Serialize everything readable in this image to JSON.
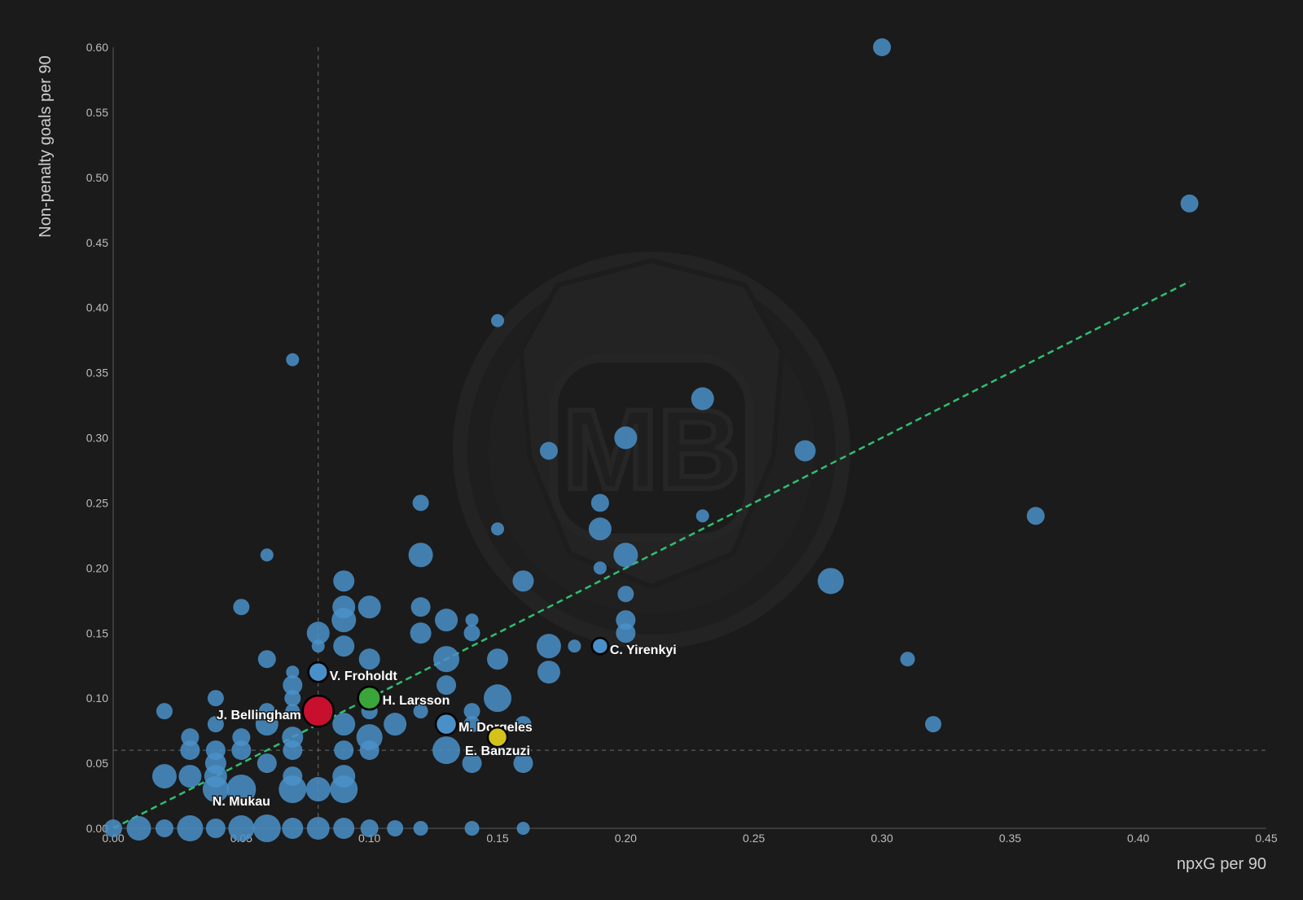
{
  "chart_data": {
    "type": "scatter",
    "title": "",
    "xlabel": "npxG per 90",
    "ylabel": "Non-penalty goals per 90",
    "xlim": [
      0,
      0.45
    ],
    "ylim": [
      0,
      0.6
    ],
    "x_ticks": [
      "0.00",
      "0.05",
      "0.10",
      "0.15",
      "0.20",
      "0.25",
      "0.30",
      "0.35",
      "0.40",
      "0.45"
    ],
    "y_ticks": [
      "0.00",
      "0.05",
      "0.10",
      "0.15",
      "0.20",
      "0.25",
      "0.30",
      "0.35",
      "0.40",
      "0.45",
      "0.50",
      "0.55",
      "0.60"
    ],
    "reference_lines": {
      "x_mean": 0.08,
      "y_mean": 0.06
    },
    "trend_line": {
      "from": [
        0,
        0
      ],
      "to": [
        0.42,
        0.42
      ],
      "color": "#2fbf71"
    },
    "grid": false,
    "watermark": "MB",
    "colors": {
      "default": "#4a90c8",
      "highlight_red": "#c8102e",
      "highlight_green": "#3aa53a",
      "highlight_yellow": "#d4c21a"
    },
    "points": [
      {
        "x": 0.3,
        "y": 0.6,
        "r": 11
      },
      {
        "x": 0.42,
        "y": 0.48,
        "r": 11
      },
      {
        "x": 0.15,
        "y": 0.39,
        "r": 8
      },
      {
        "x": 0.07,
        "y": 0.36,
        "r": 8
      },
      {
        "x": 0.23,
        "y": 0.33,
        "r": 14
      },
      {
        "x": 0.2,
        "y": 0.3,
        "r": 14
      },
      {
        "x": 0.17,
        "y": 0.29,
        "r": 11
      },
      {
        "x": 0.27,
        "y": 0.29,
        "r": 13
      },
      {
        "x": 0.12,
        "y": 0.25,
        "r": 10
      },
      {
        "x": 0.19,
        "y": 0.25,
        "r": 11
      },
      {
        "x": 0.36,
        "y": 0.24,
        "r": 11
      },
      {
        "x": 0.23,
        "y": 0.24,
        "r": 8
      },
      {
        "x": 0.15,
        "y": 0.23,
        "r": 8
      },
      {
        "x": 0.19,
        "y": 0.23,
        "r": 14
      },
      {
        "x": 0.06,
        "y": 0.21,
        "r": 8
      },
      {
        "x": 0.12,
        "y": 0.21,
        "r": 15
      },
      {
        "x": 0.2,
        "y": 0.21,
        "r": 15
      },
      {
        "x": 0.19,
        "y": 0.2,
        "r": 8
      },
      {
        "x": 0.09,
        "y": 0.19,
        "r": 13
      },
      {
        "x": 0.16,
        "y": 0.19,
        "r": 13
      },
      {
        "x": 0.28,
        "y": 0.19,
        "r": 16
      },
      {
        "x": 0.2,
        "y": 0.18,
        "r": 10
      },
      {
        "x": 0.05,
        "y": 0.17,
        "r": 10
      },
      {
        "x": 0.09,
        "y": 0.17,
        "r": 14
      },
      {
        "x": 0.1,
        "y": 0.17,
        "r": 14
      },
      {
        "x": 0.12,
        "y": 0.17,
        "r": 12
      },
      {
        "x": 0.09,
        "y": 0.16,
        "r": 15
      },
      {
        "x": 0.13,
        "y": 0.16,
        "r": 14
      },
      {
        "x": 0.14,
        "y": 0.16,
        "r": 8
      },
      {
        "x": 0.2,
        "y": 0.16,
        "r": 12
      },
      {
        "x": 0.08,
        "y": 0.15,
        "r": 14
      },
      {
        "x": 0.12,
        "y": 0.15,
        "r": 13
      },
      {
        "x": 0.14,
        "y": 0.15,
        "r": 10
      },
      {
        "x": 0.2,
        "y": 0.15,
        "r": 12
      },
      {
        "x": 0.08,
        "y": 0.14,
        "r": 8
      },
      {
        "x": 0.09,
        "y": 0.14,
        "r": 13
      },
      {
        "x": 0.17,
        "y": 0.14,
        "r": 15
      },
      {
        "x": 0.18,
        "y": 0.14,
        "r": 8
      },
      {
        "x": 0.06,
        "y": 0.13,
        "r": 11
      },
      {
        "x": 0.1,
        "y": 0.13,
        "r": 13
      },
      {
        "x": 0.13,
        "y": 0.13,
        "r": 16
      },
      {
        "x": 0.15,
        "y": 0.13,
        "r": 13
      },
      {
        "x": 0.31,
        "y": 0.13,
        "r": 9
      },
      {
        "x": 0.07,
        "y": 0.12,
        "r": 8
      },
      {
        "x": 0.17,
        "y": 0.12,
        "r": 14
      },
      {
        "x": 0.07,
        "y": 0.11,
        "r": 12
      },
      {
        "x": 0.13,
        "y": 0.11,
        "r": 12
      },
      {
        "x": 0.04,
        "y": 0.1,
        "r": 10
      },
      {
        "x": 0.07,
        "y": 0.1,
        "r": 10
      },
      {
        "x": 0.15,
        "y": 0.1,
        "r": 17
      },
      {
        "x": 0.02,
        "y": 0.09,
        "r": 10
      },
      {
        "x": 0.06,
        "y": 0.09,
        "r": 10
      },
      {
        "x": 0.07,
        "y": 0.09,
        "r": 9
      },
      {
        "x": 0.1,
        "y": 0.09,
        "r": 10
      },
      {
        "x": 0.12,
        "y": 0.09,
        "r": 9
      },
      {
        "x": 0.14,
        "y": 0.09,
        "r": 10
      },
      {
        "x": 0.04,
        "y": 0.08,
        "r": 10
      },
      {
        "x": 0.06,
        "y": 0.08,
        "r": 14
      },
      {
        "x": 0.09,
        "y": 0.08,
        "r": 14
      },
      {
        "x": 0.11,
        "y": 0.08,
        "r": 14
      },
      {
        "x": 0.14,
        "y": 0.08,
        "r": 10
      },
      {
        "x": 0.16,
        "y": 0.08,
        "r": 10
      },
      {
        "x": 0.32,
        "y": 0.08,
        "r": 10
      },
      {
        "x": 0.03,
        "y": 0.07,
        "r": 11
      },
      {
        "x": 0.05,
        "y": 0.07,
        "r": 11
      },
      {
        "x": 0.07,
        "y": 0.07,
        "r": 13
      },
      {
        "x": 0.1,
        "y": 0.07,
        "r": 16
      },
      {
        "x": 0.03,
        "y": 0.06,
        "r": 12
      },
      {
        "x": 0.04,
        "y": 0.06,
        "r": 12
      },
      {
        "x": 0.05,
        "y": 0.06,
        "r": 12
      },
      {
        "x": 0.07,
        "y": 0.06,
        "r": 12
      },
      {
        "x": 0.09,
        "y": 0.06,
        "r": 12
      },
      {
        "x": 0.1,
        "y": 0.06,
        "r": 12
      },
      {
        "x": 0.04,
        "y": 0.05,
        "r": 13
      },
      {
        "x": 0.06,
        "y": 0.05,
        "r": 12
      },
      {
        "x": 0.14,
        "y": 0.05,
        "r": 12
      },
      {
        "x": 0.16,
        "y": 0.05,
        "r": 12
      },
      {
        "x": 0.13,
        "y": 0.06,
        "r": 17
      },
      {
        "x": 0.02,
        "y": 0.04,
        "r": 15
      },
      {
        "x": 0.03,
        "y": 0.04,
        "r": 14
      },
      {
        "x": 0.04,
        "y": 0.04,
        "r": 14
      },
      {
        "x": 0.07,
        "y": 0.04,
        "r": 12
      },
      {
        "x": 0.09,
        "y": 0.04,
        "r": 14
      },
      {
        "x": 0.04,
        "y": 0.03,
        "r": 16
      },
      {
        "x": 0.05,
        "y": 0.03,
        "r": 18
      },
      {
        "x": 0.07,
        "y": 0.03,
        "r": 17
      },
      {
        "x": 0.08,
        "y": 0.03,
        "r": 15
      },
      {
        "x": 0.09,
        "y": 0.03,
        "r": 17
      },
      {
        "x": 0.0,
        "y": 0.0,
        "r": 11
      },
      {
        "x": 0.01,
        "y": 0.0,
        "r": 15
      },
      {
        "x": 0.02,
        "y": 0.0,
        "r": 11
      },
      {
        "x": 0.03,
        "y": 0.0,
        "r": 16
      },
      {
        "x": 0.04,
        "y": 0.0,
        "r": 12
      },
      {
        "x": 0.05,
        "y": 0.0,
        "r": 16
      },
      {
        "x": 0.06,
        "y": 0.0,
        "r": 17
      },
      {
        "x": 0.07,
        "y": 0.0,
        "r": 13
      },
      {
        "x": 0.08,
        "y": 0.0,
        "r": 14
      },
      {
        "x": 0.09,
        "y": 0.0,
        "r": 13
      },
      {
        "x": 0.1,
        "y": 0.0,
        "r": 11
      },
      {
        "x": 0.11,
        "y": 0.0,
        "r": 10
      },
      {
        "x": 0.12,
        "y": 0.0,
        "r": 9
      },
      {
        "x": 0.14,
        "y": 0.0,
        "r": 9
      },
      {
        "x": 0.16,
        "y": 0.0,
        "r": 8
      }
    ],
    "labeled": [
      {
        "name": "C. Yirenkyi",
        "x": 0.19,
        "y": 0.14,
        "r": 10,
        "color": "#4a90c8",
        "label_side": "right",
        "label_dy": 10
      },
      {
        "name": "V. Froholdt",
        "x": 0.08,
        "y": 0.12,
        "r": 12,
        "color": "#4a90c8",
        "label_side": "right",
        "label_dy": 10
      },
      {
        "name": "H. Larsson",
        "x": 0.1,
        "y": 0.1,
        "r": 14,
        "color": "#3aa53a",
        "label_side": "right",
        "label_dy": 8
      },
      {
        "name": "J. Bellingham",
        "x": 0.08,
        "y": 0.09,
        "r": 19,
        "color": "#c8102e",
        "label_side": "left",
        "label_dy": 10
      },
      {
        "name": "M. Dorgeles",
        "x": 0.13,
        "y": 0.08,
        "r": 13,
        "color": "#4a90c8",
        "label_side": "right",
        "label_dy": 9
      },
      {
        "name": "E. Banzuzi",
        "x": 0.15,
        "y": 0.07,
        "r": 12,
        "color": "#d4c21a",
        "label_side": "below",
        "label_dy": 22
      },
      {
        "name": "N. Mukau",
        "x": 0.05,
        "y": 0.03,
        "r": 0,
        "color": "#4a90c8",
        "label_side": "below",
        "label_dy": 20
      }
    ]
  }
}
